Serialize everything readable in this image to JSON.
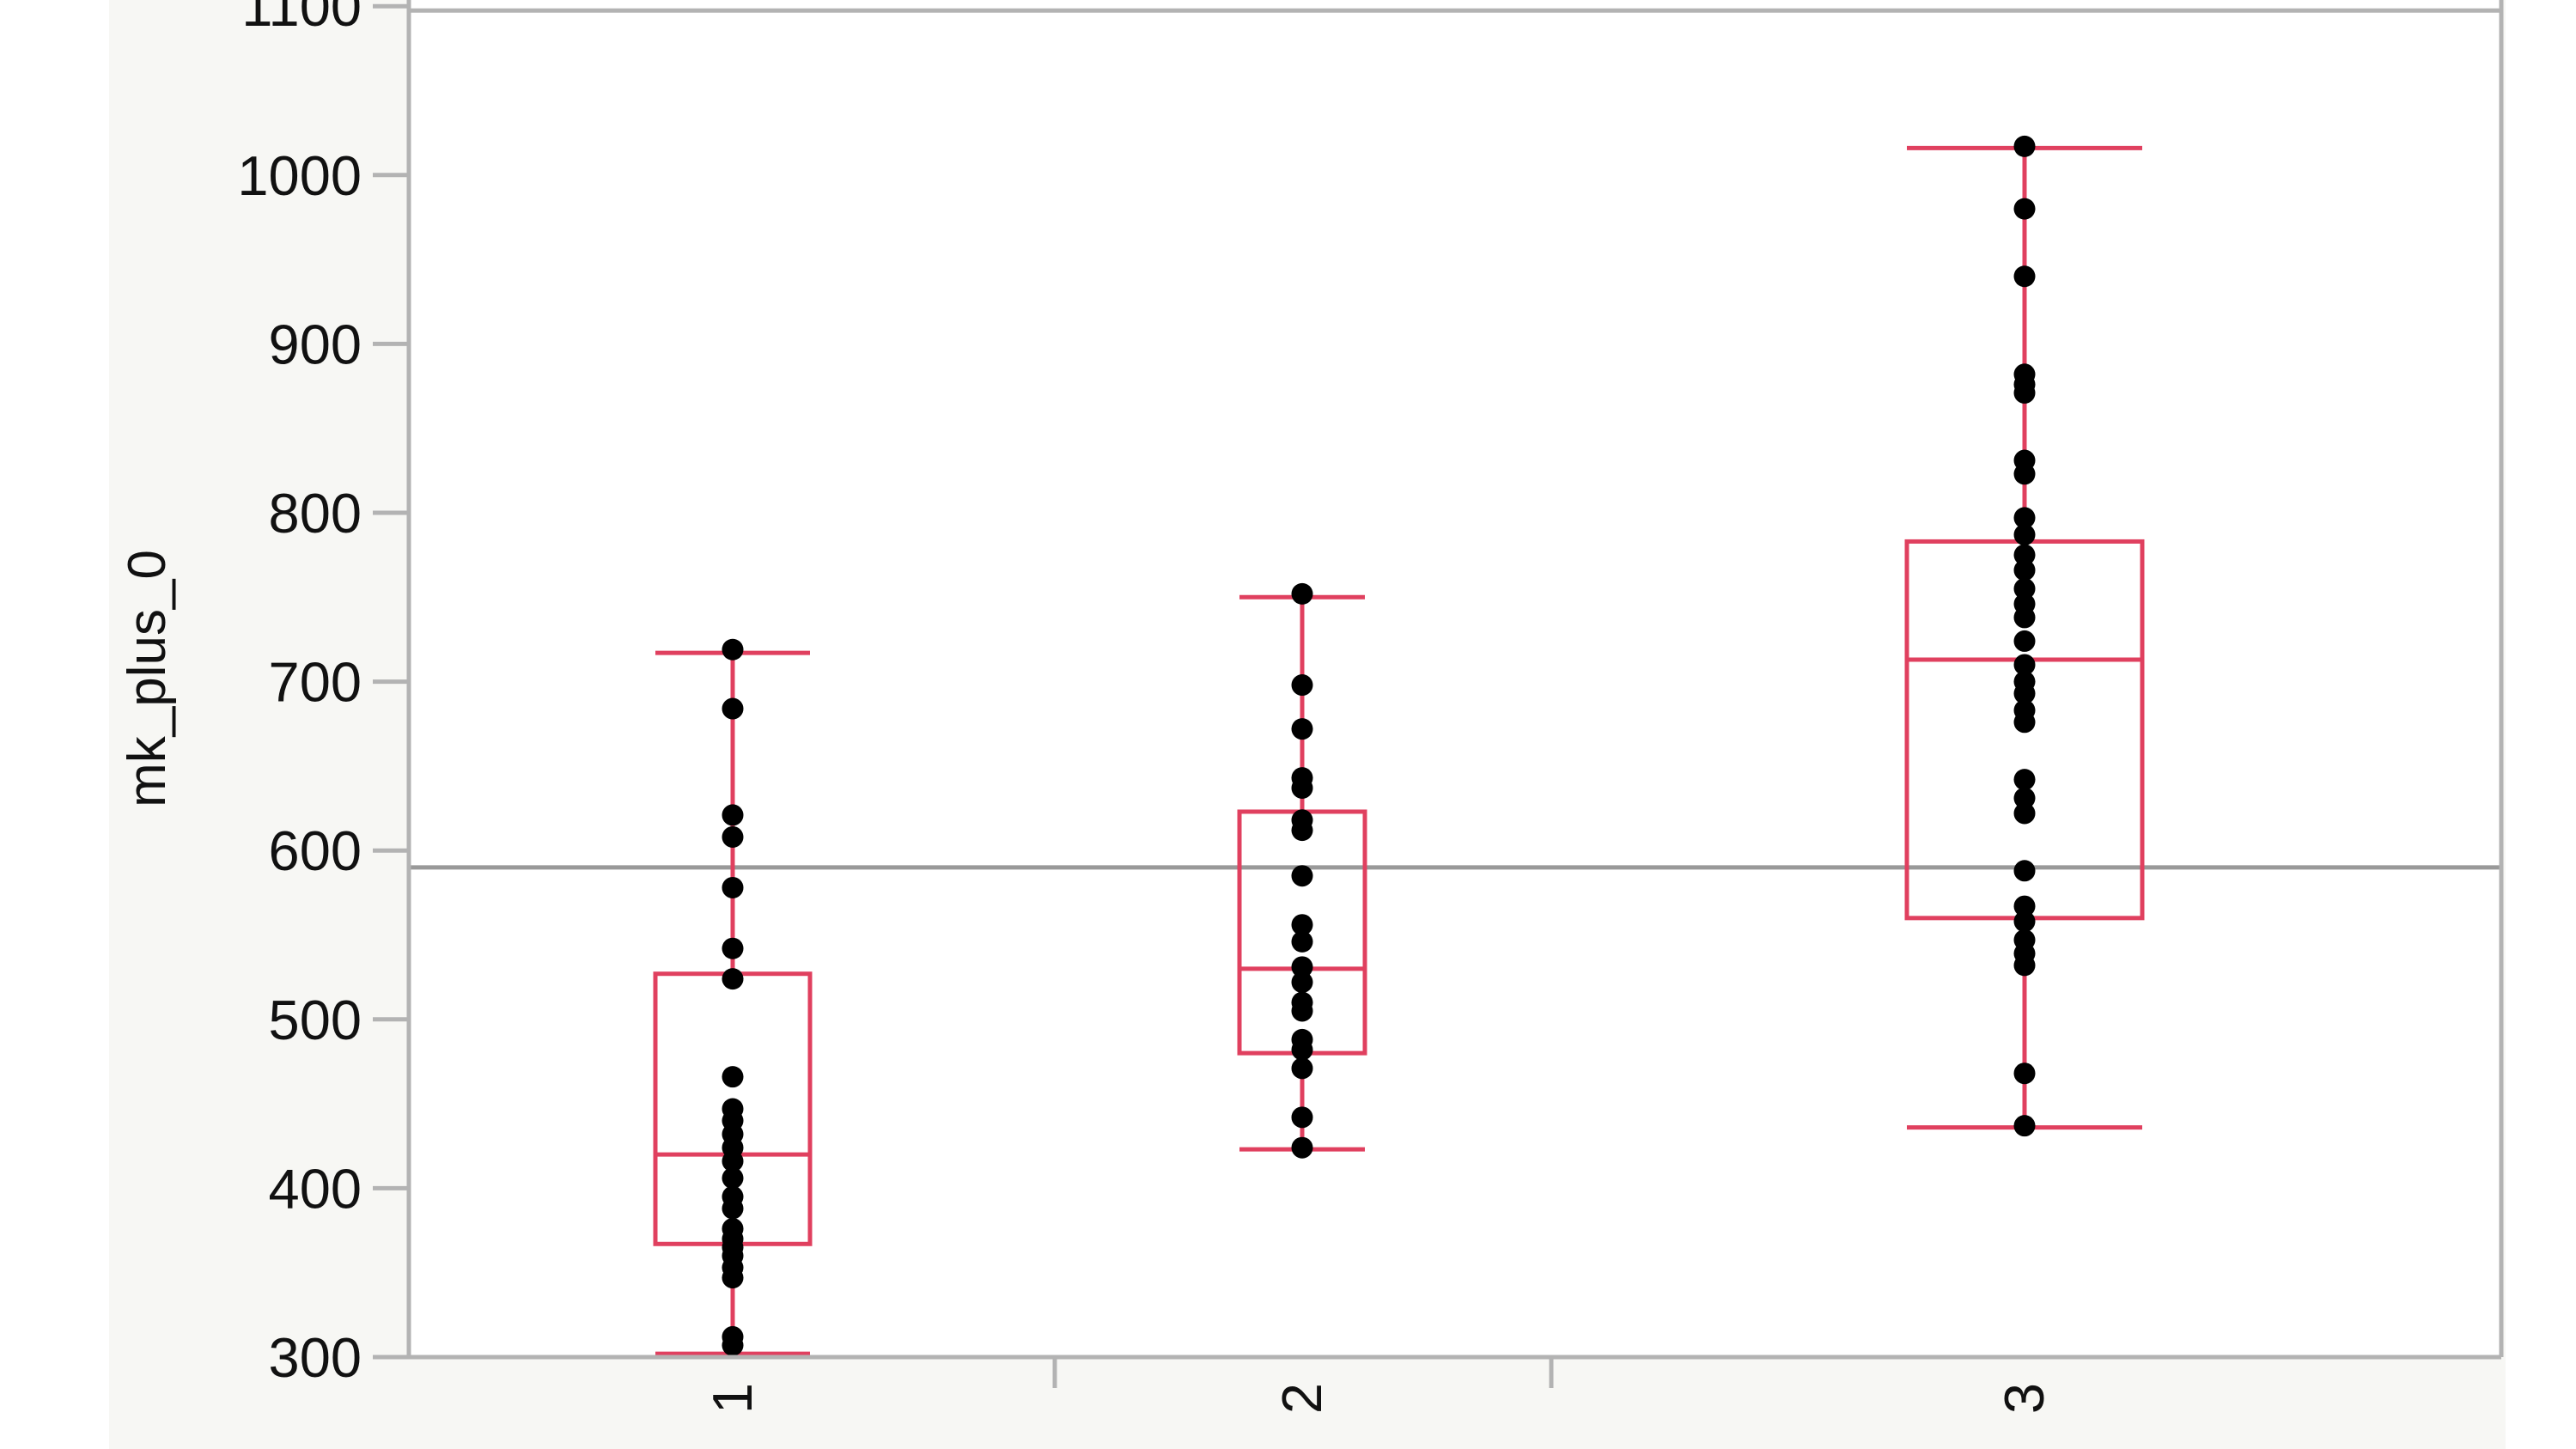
{
  "chart_data": {
    "type": "box",
    "title": "",
    "xlabel": "",
    "ylabel": "mk_plus_0",
    "ylim": [
      300,
      1100
    ],
    "yticks": [
      300,
      400,
      500,
      600,
      700,
      800,
      900,
      1000,
      1100
    ],
    "xticks": [
      "1",
      "2",
      "3"
    ],
    "reference_line": 590,
    "colors": {
      "box": "#e0405f",
      "points": "#000000",
      "reference_line": "#999999",
      "frame": "#b3b3b3",
      "margin_background": "#f7f7f4"
    },
    "groups": [
      {
        "category": "1",
        "box": {
          "whisker_low": 302,
          "q1": 367,
          "median": 420,
          "q3": 527,
          "whisker_high": 717
        },
        "points": [
          719,
          684,
          621,
          608,
          578,
          542,
          524,
          466,
          447,
          440,
          432,
          424,
          416,
          406,
          395,
          388,
          376,
          370,
          365,
          360,
          353,
          347,
          312,
          307
        ]
      },
      {
        "category": "2",
        "box": {
          "whisker_low": 423,
          "q1": 480,
          "median": 530,
          "q3": 623,
          "whisker_high": 750
        },
        "points": [
          752,
          698,
          672,
          643,
          637,
          618,
          612,
          585,
          556,
          546,
          531,
          522,
          510,
          505,
          488,
          482,
          471,
          442,
          424
        ]
      },
      {
        "category": "3",
        "box": {
          "whisker_low": 436,
          "q1": 560,
          "median": 713,
          "q3": 783,
          "whisker_high": 1016
        },
        "points": [
          1017,
          980,
          940,
          882,
          876,
          871,
          831,
          823,
          797,
          787,
          775,
          766,
          755,
          746,
          738,
          724,
          710,
          700,
          693,
          683,
          676,
          642,
          631,
          622,
          588,
          567,
          558,
          547,
          539,
          532,
          468,
          437
        ]
      }
    ]
  }
}
